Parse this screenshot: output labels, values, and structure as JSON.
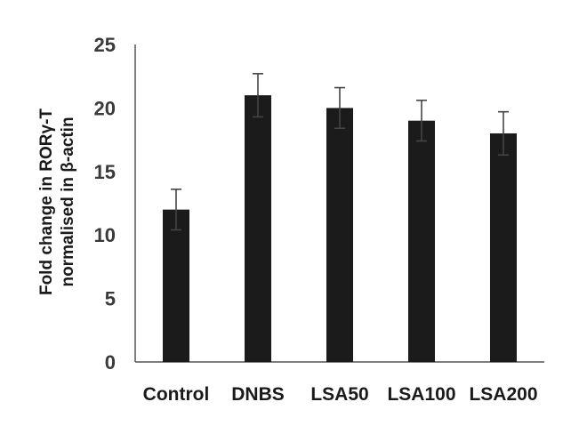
{
  "chart_data": {
    "type": "bar",
    "title": "",
    "categories": [
      "Control",
      "DNBS",
      "LSA50",
      "LSA100",
      "LSA200"
    ],
    "series": [
      {
        "values": [
          12,
          21,
          20,
          19,
          18
        ],
        "errors": [
          1.6,
          1.7,
          1.6,
          1.6,
          1.7
        ]
      }
    ],
    "xlabel": "",
    "ylabel": [
      "Fold change in RORγ-T",
      "normalised in β-actin"
    ],
    "ylim": [
      0,
      25
    ],
    "yticks": [
      "0",
      "5",
      "10",
      "15",
      "20",
      "25"
    ],
    "grid": false,
    "legend": "none",
    "colors": {
      "bar": "#1b1b1b",
      "axis": "#555555",
      "error": "#444444"
    }
  }
}
